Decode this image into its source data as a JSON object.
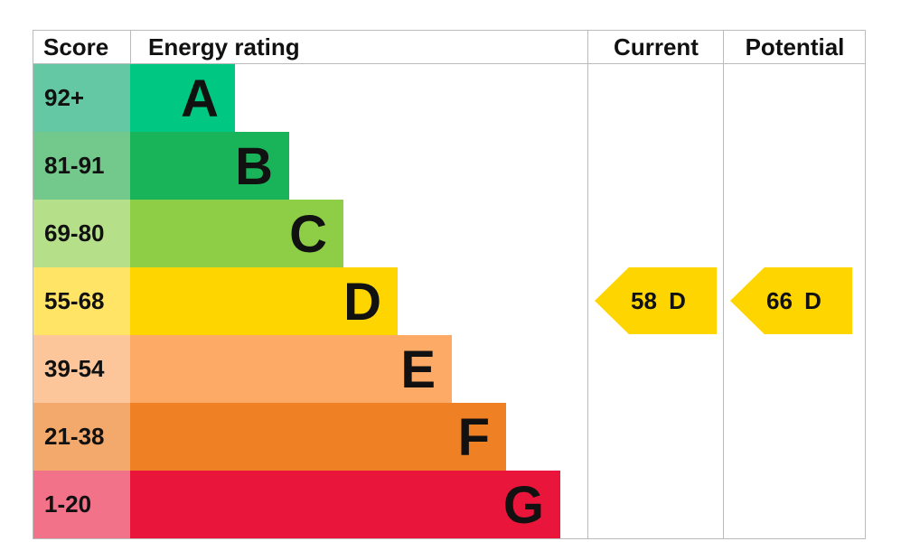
{
  "headers": {
    "score": "Score",
    "rating": "Energy rating",
    "current": "Current",
    "potential": "Potential"
  },
  "chart_data": {
    "type": "bar",
    "bands": [
      {
        "letter": "A",
        "range": "92+",
        "color": "#00c781",
        "score_color": "#64c8a4",
        "length": 1
      },
      {
        "letter": "B",
        "range": "81-91",
        "color": "#19b459",
        "score_color": "#73c98b",
        "length": 2
      },
      {
        "letter": "C",
        "range": "69-80",
        "color": "#8dce46",
        "score_color": "#b6df8a",
        "length": 3
      },
      {
        "letter": "D",
        "range": "55-68",
        "color": "#ffd500",
        "score_color": "#ffe466",
        "length": 4
      },
      {
        "letter": "E",
        "range": "39-54",
        "color": "#fcaa65",
        "score_color": "#fdc69a",
        "length": 5
      },
      {
        "letter": "F",
        "range": "21-38",
        "color": "#ef8023",
        "score_color": "#f4a96c",
        "length": 6
      },
      {
        "letter": "G",
        "range": "1-20",
        "color": "#e9153b",
        "score_color": "#f27289",
        "length": 7
      }
    ],
    "current": {
      "label": "58 D",
      "value": 58,
      "band": "D"
    },
    "potential": {
      "label": "66 D",
      "value": 66,
      "band": "D"
    }
  }
}
